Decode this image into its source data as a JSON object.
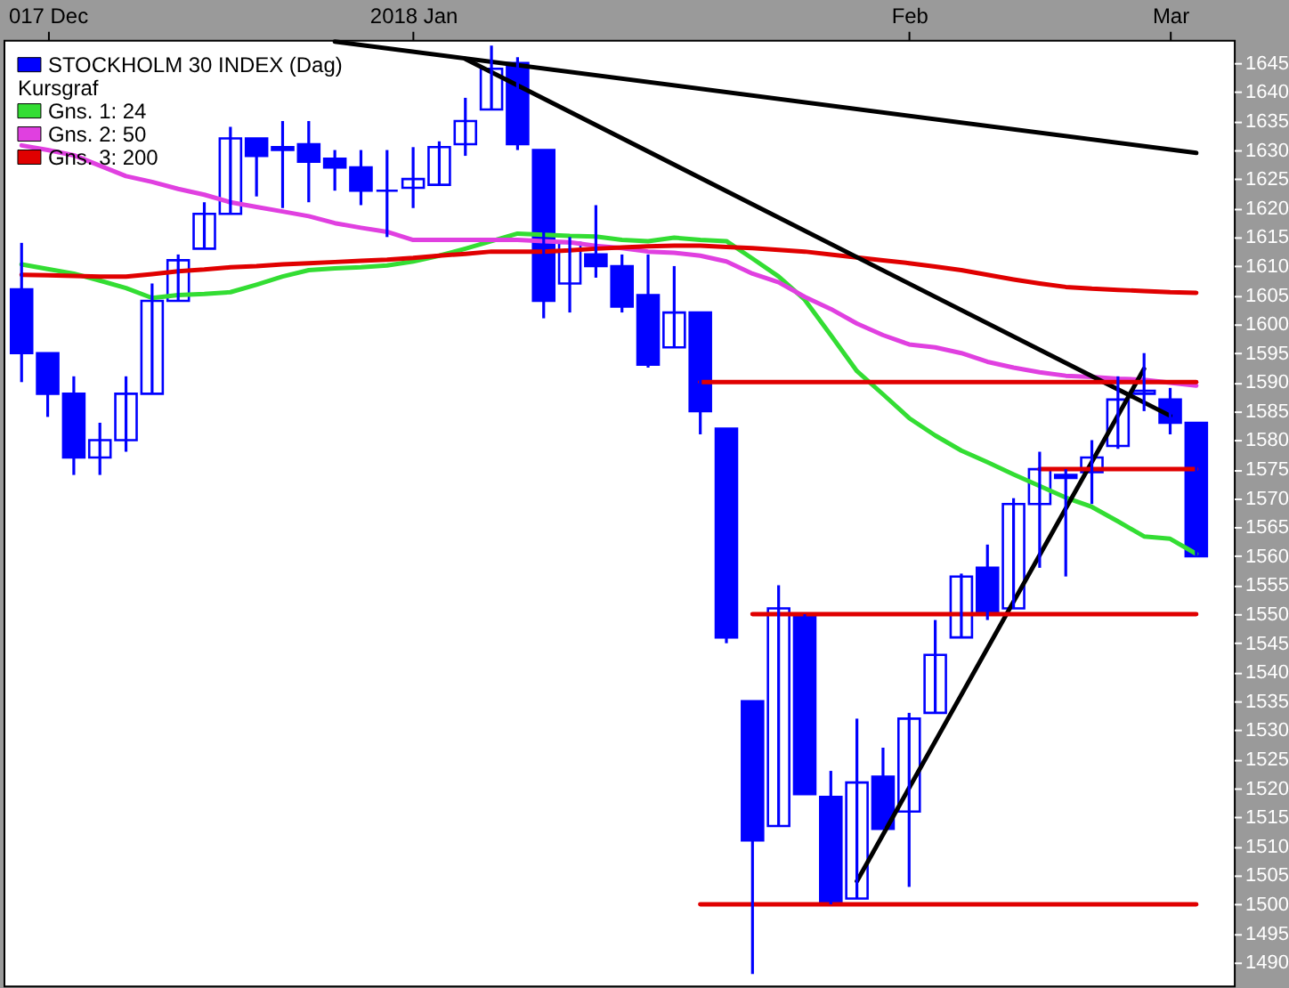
{
  "chart_data": {
    "type": "candlestick",
    "title": "STOCKHOLM 30 INDEX (Dag)",
    "legend_title": "Kursgraf",
    "color": "#0000ff",
    "categories": [
      null,
      "017 Dec",
      null,
      null,
      null,
      null,
      null,
      null,
      null,
      null,
      null,
      null,
      null,
      null,
      null,
      "2018 Jan",
      null,
      null,
      null,
      null,
      null,
      null,
      null,
      null,
      null,
      null,
      null,
      null,
      null,
      null,
      null,
      null,
      null,
      null,
      "Feb",
      null,
      null,
      null,
      null,
      null,
      null,
      null,
      null,
      null,
      "Mar",
      null
    ],
    "ohlc": [
      [
        1606,
        1614,
        1590,
        1595
      ],
      [
        1595,
        1595,
        1584,
        1588
      ],
      [
        1588,
        1591,
        1574,
        1577
      ],
      [
        1577,
        1583,
        1574,
        1580
      ],
      [
        1580,
        1591,
        1578,
        1588
      ],
      [
        1588,
        1607,
        1588,
        1604
      ],
      [
        1604,
        1612,
        1604,
        1611
      ],
      [
        1613,
        1621,
        1613,
        1619
      ],
      [
        1619,
        1634,
        1619,
        1632
      ],
      [
        1632,
        1632,
        1622,
        1629
      ],
      [
        1630.5,
        1635,
        1620,
        1630
      ],
      [
        1631,
        1635,
        1621,
        1628
      ],
      [
        1628.5,
        1630,
        1623,
        1627
      ],
      [
        1627,
        1630,
        1620.5,
        1623
      ],
      [
        1623,
        1630,
        1615,
        1623
      ],
      [
        1623.5,
        1630.5,
        1620,
        1625
      ],
      [
        1624,
        1631.5,
        1624,
        1630.5
      ],
      [
        1631,
        1639,
        1629,
        1635
      ],
      [
        1637,
        1648,
        1637,
        1644
      ],
      [
        1645,
        1646,
        1630,
        1631
      ],
      [
        1630,
        1630,
        1601,
        1604
      ],
      [
        1607,
        1615,
        1602,
        1614
      ],
      [
        1612,
        1620.5,
        1608,
        1610
      ],
      [
        1610,
        1612,
        1602,
        1603
      ],
      [
        1605,
        1612,
        1592.5,
        1593
      ],
      [
        1596,
        1610,
        1596,
        1602
      ],
      [
        1602,
        1602,
        1581,
        1585
      ],
      [
        1582,
        1582,
        1545,
        1546
      ],
      [
        1535,
        1535,
        1488,
        1511
      ],
      [
        1513.5,
        1555,
        1513.5,
        1551
      ],
      [
        1550,
        1550,
        1519,
        1519
      ],
      [
        1518.5,
        1523,
        1500,
        1500
      ],
      [
        1501,
        1532,
        1501,
        1521
      ],
      [
        1522,
        1527,
        1513,
        1513
      ],
      [
        1516,
        1533,
        1503,
        1532
      ],
      [
        1533,
        1549,
        1533,
        1543
      ],
      [
        1546,
        1557,
        1546,
        1556.5
      ],
      [
        1558,
        1562,
        1549,
        1550.5
      ],
      [
        1551,
        1570,
        1551,
        1569
      ],
      [
        1569,
        1578,
        1558,
        1575
      ],
      [
        1574,
        1575,
        1556.5,
        1573.5
      ],
      [
        1574.5,
        1580,
        1569,
        1577
      ],
      [
        1579,
        1591,
        1578.5,
        1587
      ],
      [
        1588,
        1595,
        1585,
        1588.5
      ],
      [
        1587,
        1589,
        1581,
        1583
      ],
      [
        1583,
        1583,
        1560,
        1560
      ]
    ],
    "series": [
      {
        "type": "line",
        "name": "Gns. 1: 24",
        "color": "#33dd33",
        "values": [
          1610.3,
          1609.5,
          1608.7,
          1607.5,
          1606.2,
          1604.5,
          1605,
          1605.2,
          1605.5,
          1606.8,
          1608.2,
          1609.3,
          1609.6,
          1609.8,
          1610.1,
          1610.8,
          1611.8,
          1613,
          1614.3,
          1615.6,
          1615.4,
          1615.2,
          1615.1,
          1614.5,
          1614.3,
          1614.9,
          1614.5,
          1614.3,
          1611.3,
          1608.2,
          1604.2,
          1598.1,
          1591.9,
          1587.9,
          1583.8,
          1580.8,
          1578.2,
          1576.2,
          1574.1,
          1572.1,
          1570.1,
          1568.5,
          1566,
          1563.4,
          1563,
          1560.4
        ]
      },
      {
        "type": "line",
        "name": "Gns. 2: 50",
        "color": "#e040e0",
        "values": [
          1630.8,
          1630,
          1629.1,
          1627.3,
          1625.5,
          1624.5,
          1623.3,
          1622.3,
          1621,
          1620.2,
          1619.4,
          1618.6,
          1617.4,
          1616.6,
          1615.9,
          1614.5,
          1614.5,
          1614.5,
          1614.5,
          1614.5,
          1614.3,
          1614.1,
          1613.5,
          1613.1,
          1612.5,
          1612.3,
          1611.8,
          1610.8,
          1608.7,
          1607.2,
          1604.7,
          1602.6,
          1600.1,
          1598.1,
          1596.5,
          1596,
          1595,
          1593.5,
          1592.5,
          1591.7,
          1591.1,
          1590.9,
          1590.6,
          1590.4,
          1589.9,
          1589.4
        ]
      },
      {
        "type": "line",
        "name": "Gns. 3: 200",
        "color": "#e00000",
        "values": [
          1608.5,
          1608.4,
          1608.3,
          1608.2,
          1608.2,
          1608.6,
          1609.1,
          1609.4,
          1609.8,
          1610,
          1610.3,
          1610.5,
          1610.7,
          1610.9,
          1611.1,
          1611.4,
          1611.8,
          1612.1,
          1612.5,
          1612.5,
          1612.5,
          1612.7,
          1613,
          1613.2,
          1613.4,
          1613.5,
          1613.5,
          1613.3,
          1613.1,
          1612.8,
          1612.5,
          1612,
          1611.5,
          1611,
          1610.5,
          1609.9,
          1609.3,
          1608.5,
          1607.7,
          1607,
          1606.4,
          1606.1,
          1605.9,
          1605.7,
          1605.5,
          1605.4
        ]
      },
      {
        "type": "line",
        "color": "#000000",
        "values": [
          null,
          null,
          null,
          null,
          null,
          null,
          null,
          null,
          null,
          null,
          null,
          null,
          1648.7,
          null,
          null,
          null,
          null,
          null,
          null,
          null,
          null,
          null,
          null,
          null,
          null,
          null,
          null,
          null,
          null,
          null,
          null,
          null,
          null,
          null,
          null,
          null,
          null,
          null,
          null,
          null,
          null,
          null,
          null,
          null,
          null,
          1629.5
        ]
      },
      {
        "type": "line",
        "color": "#000000",
        "values": [
          null,
          null,
          null,
          null,
          null,
          null,
          null,
          null,
          null,
          null,
          null,
          null,
          null,
          null,
          null,
          null,
          null,
          1645.7,
          null,
          null,
          null,
          null,
          null,
          null,
          null,
          null,
          null,
          null,
          null,
          null,
          null,
          null,
          null,
          null,
          null,
          null,
          null,
          null,
          null,
          null,
          null,
          null,
          null,
          null,
          1584.2,
          null
        ]
      },
      {
        "type": "line",
        "color": "#000000",
        "values": [
          null,
          null,
          null,
          null,
          null,
          null,
          null,
          null,
          null,
          null,
          null,
          null,
          null,
          null,
          null,
          null,
          null,
          null,
          null,
          null,
          null,
          null,
          null,
          null,
          null,
          null,
          null,
          null,
          null,
          null,
          null,
          null,
          1504,
          null,
          null,
          null,
          null,
          null,
          null,
          null,
          null,
          null,
          null,
          1592.3,
          null,
          null
        ]
      },
      {
        "type": "line",
        "color": "#e00000",
        "values": [
          null,
          null,
          null,
          null,
          null,
          null,
          null,
          null,
          null,
          null,
          null,
          null,
          null,
          null,
          null,
          null,
          null,
          null,
          null,
          null,
          null,
          null,
          null,
          null,
          null,
          null,
          1590,
          null,
          null,
          null,
          null,
          null,
          null,
          null,
          null,
          null,
          null,
          null,
          null,
          null,
          null,
          null,
          null,
          null,
          null,
          1590
        ]
      },
      {
        "type": "line",
        "color": "#e00000",
        "values": [
          null,
          null,
          null,
          null,
          null,
          null,
          null,
          null,
          null,
          null,
          null,
          null,
          null,
          null,
          null,
          null,
          null,
          null,
          null,
          null,
          null,
          null,
          null,
          null,
          null,
          null,
          null,
          null,
          null,
          null,
          null,
          null,
          null,
          null,
          null,
          null,
          null,
          null,
          null,
          1575,
          null,
          null,
          null,
          null,
          null,
          1575
        ]
      },
      {
        "type": "line",
        "color": "#e00000",
        "values": [
          null,
          null,
          null,
          null,
          null,
          null,
          null,
          null,
          null,
          null,
          null,
          null,
          null,
          null,
          null,
          null,
          null,
          null,
          null,
          null,
          null,
          null,
          null,
          null,
          null,
          null,
          null,
          null,
          1550,
          null,
          null,
          null,
          null,
          null,
          null,
          null,
          null,
          null,
          null,
          null,
          null,
          null,
          null,
          null,
          null,
          1550
        ]
      },
      {
        "type": "line",
        "color": "#e00000",
        "values": [
          null,
          null,
          null,
          null,
          null,
          null,
          null,
          null,
          null,
          null,
          null,
          null,
          null,
          null,
          null,
          null,
          null,
          null,
          null,
          null,
          null,
          null,
          null,
          null,
          null,
          null,
          1500,
          null,
          null,
          null,
          null,
          null,
          null,
          null,
          null,
          null,
          null,
          null,
          null,
          null,
          null,
          null,
          null,
          null,
          null,
          1500
        ]
      }
    ],
    "ylim": [
      1486,
      1649
    ],
    "yticks": [
      1490,
      1495,
      1500,
      1505,
      1510,
      1515,
      1520,
      1525,
      1530,
      1535,
      1540,
      1545,
      1550,
      1555,
      1560,
      1565,
      1570,
      1575,
      1580,
      1585,
      1590,
      1595,
      1600,
      1605,
      1610,
      1615,
      1620,
      1625,
      1630,
      1635,
      1640,
      1645
    ],
    "legend": "top left",
    "grid": false
  }
}
